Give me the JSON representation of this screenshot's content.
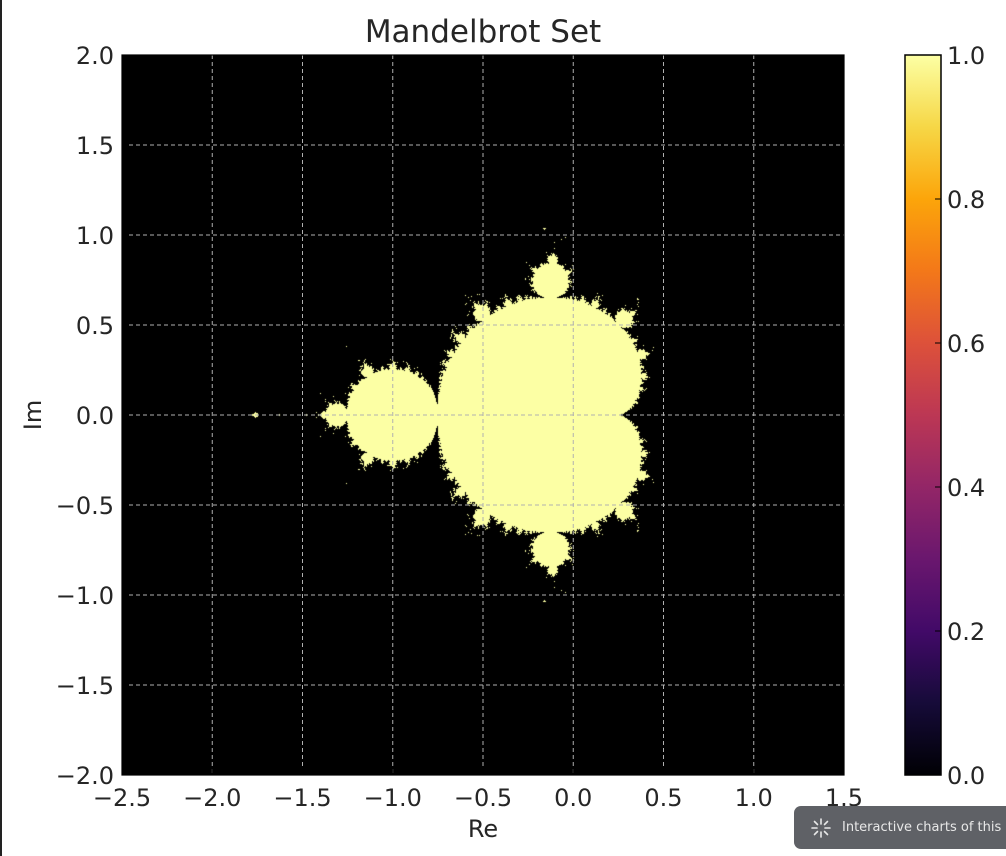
{
  "chart_data": {
    "type": "heatmap",
    "title": "Mandelbrot Set",
    "xlabel": "Re",
    "ylabel": "Im",
    "xlim": [
      -2.5,
      1.5
    ],
    "ylim": [
      -2.0,
      2.0
    ],
    "x_ticks": [
      "−2.5",
      "−2.0",
      "−1.5",
      "−1.0",
      "−0.5",
      "0.0",
      "0.5",
      "1.0",
      "1.5"
    ],
    "y_ticks": [
      "−2.0",
      "−1.5",
      "−1.0",
      "−0.5",
      "0.0",
      "0.5",
      "1.0",
      "1.5",
      "2.0"
    ],
    "x_tick_values": [
      -2.5,
      -2.0,
      -1.5,
      -1.0,
      -0.5,
      0.0,
      0.5,
      1.0,
      1.5
    ],
    "y_tick_values": [
      -2.0,
      -1.5,
      -1.0,
      -0.5,
      0.0,
      0.5,
      1.0,
      1.5,
      2.0
    ],
    "grid": true,
    "colormap": "inferno",
    "colorbar": {
      "range": [
        0.0,
        1.0
      ],
      "ticks": [
        "0.0",
        "0.2",
        "0.4",
        "0.6",
        "0.8",
        "1.0"
      ],
      "tick_values": [
        0.0,
        0.2,
        0.4,
        0.6,
        0.8,
        1.0
      ]
    },
    "max_iterations": 50,
    "colors": {
      "background": "#000000",
      "set": "#fcffa4",
      "grid": "#b0b0b0"
    }
  },
  "toast": {
    "text": "Interactive charts of this",
    "icon": "sparkle-icon"
  }
}
